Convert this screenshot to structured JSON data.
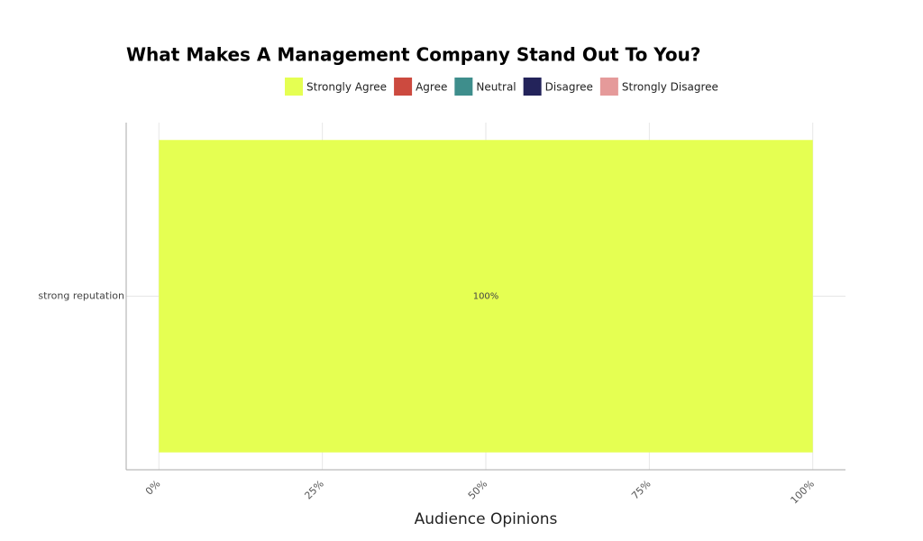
{
  "chart_data": {
    "type": "stacked-bar-horizontal",
    "title": "What Makes A Management Company Stand Out To You?",
    "x_label": "Audience Opinions",
    "categories": [
      "strong reputation"
    ],
    "series": [
      {
        "name": "Strongly Agree",
        "color": "#e5ff52",
        "values": [
          100
        ],
        "value_labels": [
          "100%"
        ]
      },
      {
        "name": "Agree",
        "color": "#cc4a3f",
        "values": [
          0
        ]
      },
      {
        "name": "Neutral",
        "color": "#3e8e8c",
        "values": [
          0
        ]
      },
      {
        "name": "Disagree",
        "color": "#23235a",
        "values": [
          0
        ]
      },
      {
        "name": "Strongly Disagree",
        "color": "#e59a9a",
        "values": [
          0
        ]
      }
    ],
    "xlim": [
      -5,
      105
    ],
    "xticks": [
      {
        "value": 0,
        "label": "0%"
      },
      {
        "value": 25,
        "label": "25%"
      },
      {
        "value": 50,
        "label": "50%"
      },
      {
        "value": 75,
        "label": "75%"
      },
      {
        "value": 100,
        "label": "100%"
      }
    ],
    "grid": true,
    "legend": "top"
  }
}
